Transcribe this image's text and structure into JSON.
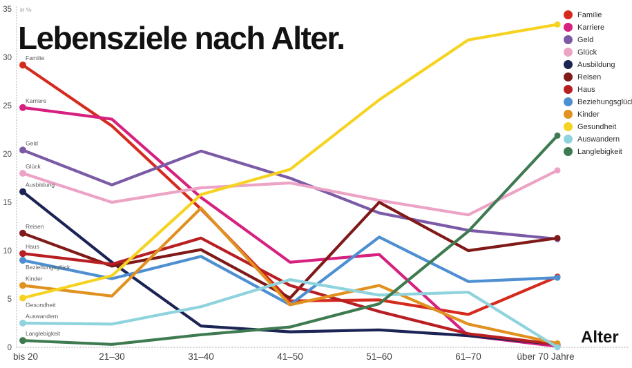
{
  "title": "Lebensziele nach Alter.",
  "axis_note": "in %",
  "x_axis_title": "Alter",
  "chart_data": {
    "type": "line",
    "title": "Lebensziele nach Alter.",
    "ylabel": "in %",
    "xlabel": "Alter",
    "ylim": [
      0,
      35
    ],
    "y_ticks": [
      0,
      5,
      10,
      15,
      20,
      25,
      30,
      35
    ],
    "grid": "dotted left and bottom axis lines only",
    "legend_position": "top-right",
    "categories": [
      "bis 20",
      "21–30",
      "31–40",
      "41–50",
      "51–60",
      "61–70",
      "über 70 Jahre"
    ],
    "series": [
      {
        "name": "Familie",
        "color": "#d52b1e",
        "values": [
          29.2,
          22.9,
          14.3,
          4.8,
          4.9,
          3.4,
          7.3
        ]
      },
      {
        "name": "Karriere",
        "color": "#d6217e",
        "values": [
          24.8,
          23.6,
          15.5,
          8.8,
          9.6,
          1.2,
          0.1
        ]
      },
      {
        "name": "Geld",
        "color": "#7b5aa6",
        "values": [
          20.4,
          16.8,
          20.3,
          17.5,
          13.9,
          12.1,
          11.2
        ]
      },
      {
        "name": "Glück",
        "color": "#eca3c5",
        "values": [
          18.0,
          15.0,
          16.5,
          17.0,
          15.2,
          13.7,
          18.3
        ]
      },
      {
        "name": "Ausbildung",
        "color": "#1b2455",
        "values": [
          16.1,
          8.8,
          2.2,
          1.6,
          1.8,
          1.2,
          0.3
        ]
      },
      {
        "name": "Reisen",
        "color": "#7f1a18",
        "values": [
          11.8,
          8.4,
          10.1,
          5.1,
          15.0,
          10.0,
          11.3
        ]
      },
      {
        "name": "Haus",
        "color": "#b81f23",
        "values": [
          9.7,
          8.6,
          11.3,
          6.4,
          3.7,
          1.4,
          0.3
        ]
      },
      {
        "name": "Beziehungsglück",
        "color": "#4d8fd1",
        "values": [
          9.0,
          7.1,
          9.4,
          4.4,
          11.4,
          6.8,
          7.2
        ],
        "label_below": true
      },
      {
        "name": "Kinder",
        "color": "#e0911f",
        "values": [
          6.4,
          5.3,
          14.4,
          4.4,
          6.4,
          2.4,
          0.4
        ]
      },
      {
        "name": "Gesundheit",
        "color": "#f6d320",
        "values": [
          5.1,
          7.4,
          15.8,
          18.4,
          25.6,
          31.8,
          33.4
        ],
        "label_below": true
      },
      {
        "name": "Auswandern",
        "color": "#8ed3dd",
        "values": [
          2.5,
          2.4,
          4.2,
          7.0,
          5.4,
          5.7,
          0.0
        ]
      },
      {
        "name": "Langlebigkeit",
        "color": "#3f7b51",
        "values": [
          0.7,
          0.3,
          1.3,
          2.1,
          4.5,
          12.0,
          21.9
        ]
      }
    ]
  }
}
